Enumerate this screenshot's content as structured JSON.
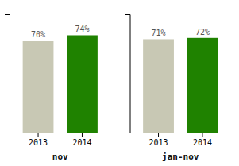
{
  "chart_data": [
    {
      "type": "bar",
      "xlabel": "nov",
      "categories": [
        "2013",
        "2014"
      ],
      "values": [
        70,
        74
      ],
      "value_labels": [
        "70%",
        "74%"
      ],
      "data_labels": true,
      "colors": [
        "#c8c8b4",
        "#1f8200"
      ],
      "ylim": [
        0,
        90
      ],
      "tick_labels": "x",
      "grid": false
    },
    {
      "type": "bar",
      "xlabel": "jan-nov",
      "categories": [
        "2013",
        "2014"
      ],
      "values": [
        71,
        72
      ],
      "value_labels": [
        "71%",
        "72%"
      ],
      "data_labels": true,
      "colors": [
        "#c8c8b4",
        "#1f8200"
      ],
      "ylim": [
        0,
        90
      ],
      "tick_labels": "x",
      "grid": false
    }
  ]
}
